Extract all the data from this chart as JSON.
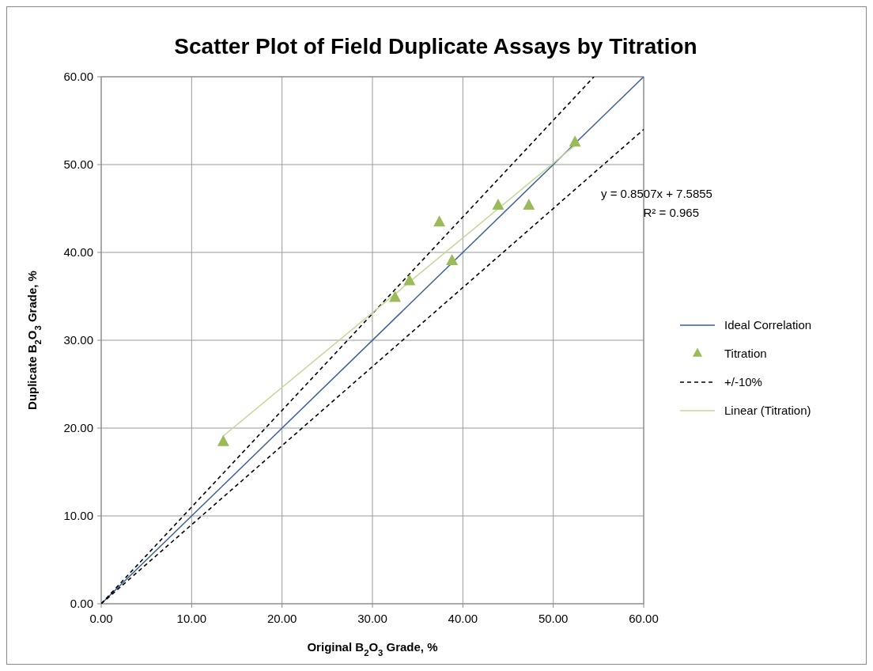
{
  "chart_data": {
    "type": "scatter",
    "title": "Scatter Plot of Field Duplicate Assays by Titration",
    "xlabel": "Original B$_{2}$O$_{3}$ Grade, %",
    "ylabel": "Duplicate B$_{2}$O$_{3}$ Grade, %",
    "xlim": [
      0,
      60
    ],
    "ylim": [
      0,
      60
    ],
    "xticks": [
      {
        "value": 0,
        "label": "0.00"
      },
      {
        "value": 10,
        "label": "10.00"
      },
      {
        "value": 20,
        "label": "20.00"
      },
      {
        "value": 30,
        "label": "30.00"
      },
      {
        "value": 40,
        "label": "40.00"
      },
      {
        "value": 50,
        "label": "50.00"
      },
      {
        "value": 60,
        "label": "60.00"
      }
    ],
    "yticks": [
      {
        "value": 0,
        "label": "0.00"
      },
      {
        "value": 10,
        "label": "10.00"
      },
      {
        "value": 20,
        "label": "20.00"
      },
      {
        "value": 30,
        "label": "30.00"
      },
      {
        "value": 40,
        "label": "40.00"
      },
      {
        "value": 50,
        "label": "50.00"
      },
      {
        "value": 60,
        "label": "60.00"
      }
    ],
    "grid": true,
    "legend": "right",
    "annotations": [
      "y = 0.8507x + 7.5855",
      "R² = 0.965"
    ],
    "series": [
      {
        "name": "Ideal Correlation",
        "type": "line",
        "color": "#3a5f9a",
        "x": [
          0,
          60
        ],
        "values": [
          0,
          60
        ],
        "marker": "none",
        "line_style": "solid"
      },
      {
        "name": "Titration",
        "color": "#9bbb59",
        "x": [
          13.5,
          32.5,
          34.1,
          37.4,
          38.8,
          43.9,
          47.3,
          52.4
        ],
        "values": [
          18.5,
          34.9,
          36.8,
          43.5,
          39.1,
          45.4,
          45.4,
          52.6
        ],
        "marker": "triangle"
      },
      {
        "name": "+/-10%",
        "type": "line",
        "color": "#000000",
        "x": [
          0,
          54.5
        ],
        "values": [
          0,
          60
        ],
        "marker": "none",
        "line_style": "dashed"
      },
      {
        "type": "line",
        "color": "#000000",
        "x": [
          0,
          60
        ],
        "values": [
          0,
          54
        ],
        "marker": "none",
        "line_style": "dashed"
      },
      {
        "name": "Linear (Titration)",
        "type": "line",
        "color": "#c4d79b",
        "x": [
          13.5,
          52.4
        ],
        "values": [
          19.1,
          52.2
        ],
        "marker": "none",
        "line_style": "solid"
      }
    ]
  }
}
